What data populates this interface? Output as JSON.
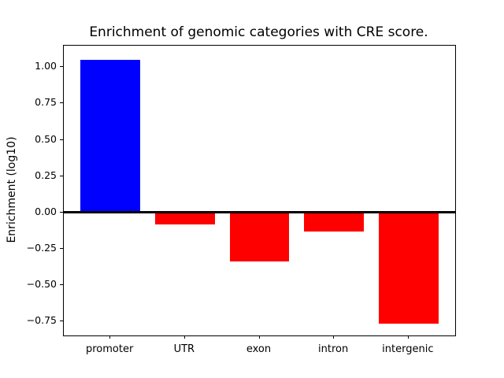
{
  "chart_data": {
    "type": "bar",
    "title": "Enrichment of genomic categories with CRE score.",
    "xlabel": "",
    "ylabel": "Enrichment (log10)",
    "categories": [
      "promoter",
      "UTR",
      "exon",
      "intron",
      "intergenic"
    ],
    "values": [
      1.05,
      -0.08,
      -0.335,
      -0.13,
      -0.765
    ],
    "bar_colors": [
      "#0000ff",
      "#ff0000",
      "#ff0000",
      "#ff0000",
      "#ff0000"
    ],
    "positive_color": "#0000ff",
    "negative_color": "#ff0000",
    "yticks": [
      1.0,
      0.75,
      0.5,
      0.25,
      0.0,
      -0.25,
      -0.5,
      -0.75
    ],
    "ylim": [
      -0.845,
      1.148
    ],
    "xlim": [
      -0.625,
      4.625
    ],
    "bar_width": 0.8,
    "zero_line": true,
    "grid": false,
    "legend": null,
    "spine_color": "#000000",
    "background_color": "#ffffff"
  }
}
